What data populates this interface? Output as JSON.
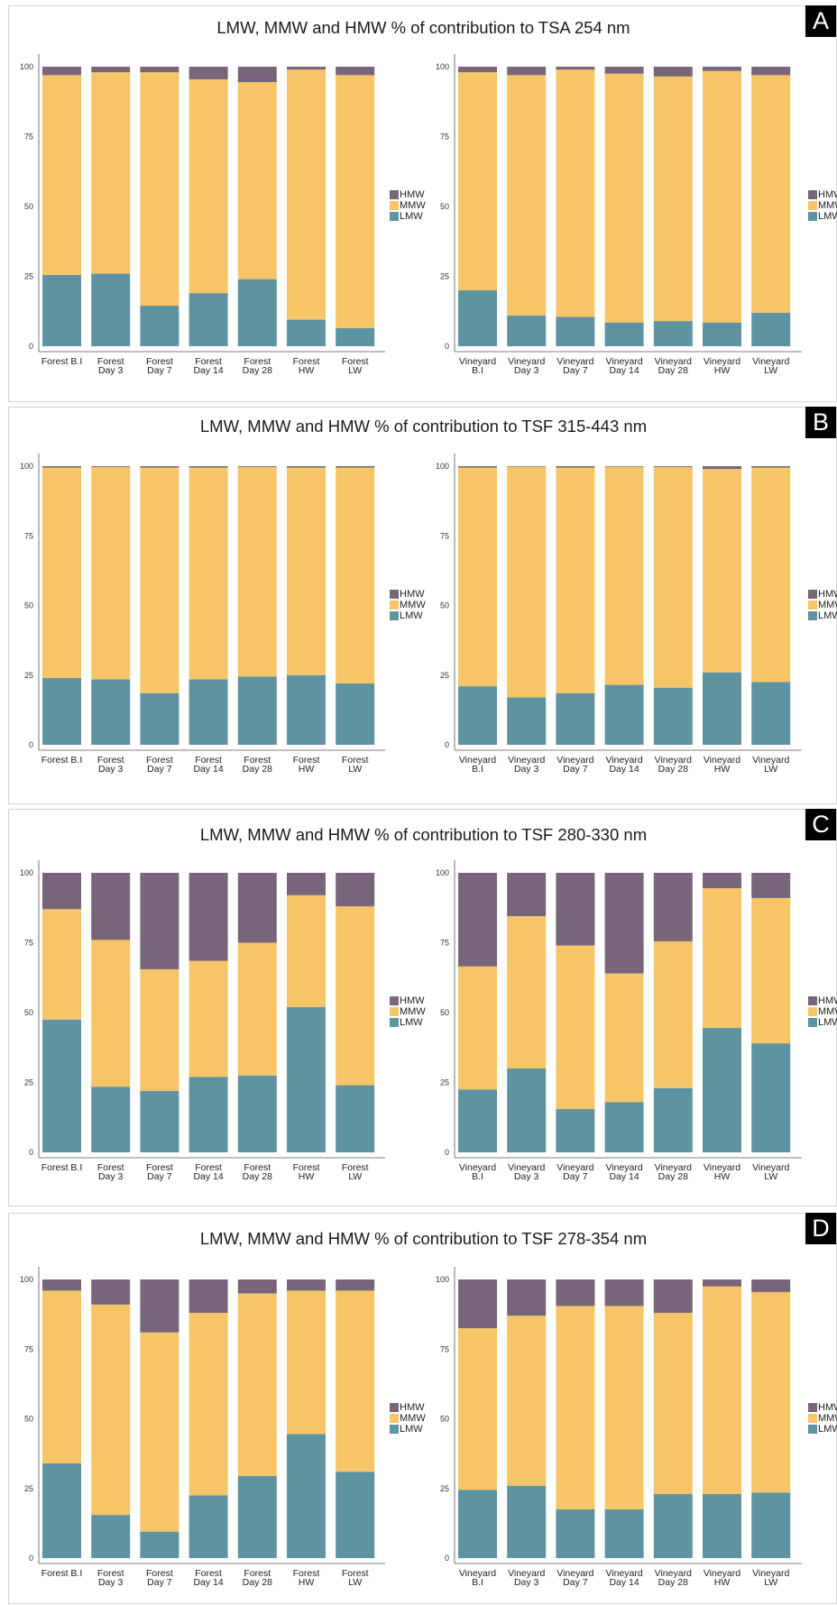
{
  "colors": {
    "LMW": "#5e93a2",
    "MMW": "#f6c567",
    "HMW": "#776679"
  },
  "legend": [
    "HMW",
    "MMW",
    "LMW"
  ],
  "panels": [
    {
      "letter": "A",
      "title": "LMW, MMW and HMW % of contribution to TSA 254 nm"
    },
    {
      "letter": "B",
      "title": "LMW, MMW and HMW % of contribution to TSF 315-443 nm"
    },
    {
      "letter": "C",
      "title": "LMW, MMW and HMW % of contribution to TSF 280-330 nm"
    },
    {
      "letter": "D",
      "title": "LMW, MMW and HMW % of contribution to TSF 278-354 nm"
    }
  ],
  "chart_data": [
    {
      "panel": "A",
      "type": "bar",
      "stacked": true,
      "ylim": [
        0,
        100
      ],
      "yticks": [
        0,
        25,
        50,
        75,
        100
      ],
      "categories": [
        [
          "Forest B.I"
        ],
        [
          "Forest",
          "Day 3"
        ],
        [
          "Forest",
          "Day 7"
        ],
        [
          "Forest",
          "Day 14"
        ],
        [
          "Forest",
          "Day 28"
        ],
        [
          "Forest",
          "HW"
        ],
        [
          "Forest",
          "LW"
        ]
      ],
      "series": [
        {
          "name": "LMW",
          "values": [
            25.5,
            26,
            14.5,
            19,
            24,
            9.5,
            6.5
          ]
        },
        {
          "name": "MMW",
          "values": [
            71.5,
            72,
            83.5,
            76.5,
            70.5,
            89.5,
            90.5
          ]
        },
        {
          "name": "HMW",
          "values": [
            3,
            2,
            2,
            4.5,
            5.5,
            1,
            3
          ]
        }
      ]
    },
    {
      "panel": "A",
      "type": "bar",
      "stacked": true,
      "ylim": [
        0,
        100
      ],
      "yticks": [
        0,
        25,
        50,
        75,
        100
      ],
      "categories": [
        [
          "Vineyard",
          "B.I"
        ],
        [
          "Vineyard",
          "Day 3"
        ],
        [
          "Vineyard",
          "Day 7"
        ],
        [
          "Vineyard",
          "Day 14"
        ],
        [
          "Vineyard",
          "Day 28"
        ],
        [
          "Vineyard",
          "HW"
        ],
        [
          "Vineyard",
          "LW"
        ]
      ],
      "series": [
        {
          "name": "LMW",
          "values": [
            20,
            11,
            10.5,
            8.5,
            9,
            8.5,
            12
          ]
        },
        {
          "name": "MMW",
          "values": [
            78,
            86,
            88.5,
            89,
            87.5,
            90,
            85
          ]
        },
        {
          "name": "HMW",
          "values": [
            2,
            3,
            1,
            2.5,
            3.5,
            1.5,
            3
          ]
        }
      ]
    },
    {
      "panel": "B",
      "type": "bar",
      "stacked": true,
      "ylim": [
        0,
        100
      ],
      "yticks": [
        0,
        25,
        50,
        75,
        100
      ],
      "categories": [
        [
          "Forest B.I"
        ],
        [
          "Forest",
          "Day 3"
        ],
        [
          "Forest",
          "Day 7"
        ],
        [
          "Forest",
          "Day 14"
        ],
        [
          "Forest",
          "Day 28"
        ],
        [
          "Forest",
          "HW"
        ],
        [
          "Forest",
          "LW"
        ]
      ],
      "series": [
        {
          "name": "LMW",
          "values": [
            24,
            23.5,
            18.5,
            23.5,
            24.5,
            25,
            22
          ]
        },
        {
          "name": "MMW",
          "values": [
            75.5,
            76.2,
            81,
            76,
            75.2,
            74.5,
            77.5
          ]
        },
        {
          "name": "HMW",
          "values": [
            0.5,
            0.3,
            0.5,
            0.5,
            0.3,
            0.5,
            0.5
          ]
        }
      ]
    },
    {
      "panel": "B",
      "type": "bar",
      "stacked": true,
      "ylim": [
        0,
        100
      ],
      "yticks": [
        0,
        25,
        50,
        75,
        100
      ],
      "categories": [
        [
          "Vineyard",
          "B.I"
        ],
        [
          "Vineyard",
          "Day 3"
        ],
        [
          "Vineyard",
          "Day 7"
        ],
        [
          "Vineyard",
          "Day 14"
        ],
        [
          "Vineyard",
          "Day 28"
        ],
        [
          "Vineyard",
          "HW"
        ],
        [
          "Vineyard",
          "LW"
        ]
      ],
      "series": [
        {
          "name": "LMW",
          "values": [
            21,
            17,
            18.5,
            21.5,
            20.5,
            26,
            22.5
          ]
        },
        {
          "name": "MMW",
          "values": [
            78.5,
            82.8,
            81,
            78.3,
            79.2,
            73,
            77
          ]
        },
        {
          "name": "HMW",
          "values": [
            0.5,
            0.2,
            0.5,
            0.2,
            0.3,
            1,
            0.5
          ]
        }
      ]
    },
    {
      "panel": "C",
      "type": "bar",
      "stacked": true,
      "ylim": [
        0,
        100
      ],
      "yticks": [
        0,
        25,
        50,
        75,
        100
      ],
      "categories": [
        [
          "Forest B.I"
        ],
        [
          "Forest",
          "Day 3"
        ],
        [
          "Forest",
          "Day 7"
        ],
        [
          "Forest",
          "Day 14"
        ],
        [
          "Forest",
          "Day 28"
        ],
        [
          "Forest",
          "HW"
        ],
        [
          "Forest",
          "LW"
        ]
      ],
      "series": [
        {
          "name": "LMW",
          "values": [
            47.5,
            23.5,
            22,
            27,
            27.5,
            52,
            24
          ]
        },
        {
          "name": "MMW",
          "values": [
            39.5,
            52.5,
            43.5,
            41.5,
            47.5,
            40,
            64
          ]
        },
        {
          "name": "HMW",
          "values": [
            13,
            24,
            34.5,
            31.5,
            25,
            8,
            12
          ]
        }
      ]
    },
    {
      "panel": "C",
      "type": "bar",
      "stacked": true,
      "ylim": [
        0,
        100
      ],
      "yticks": [
        0,
        25,
        50,
        75,
        100
      ],
      "categories": [
        [
          "Vineyard",
          "B.I"
        ],
        [
          "Vineyard",
          "Day 3"
        ],
        [
          "Vineyard",
          "Day 7"
        ],
        [
          "Vineyard",
          "Day 14"
        ],
        [
          "Vineyard",
          "Day 28"
        ],
        [
          "Vineyard",
          "HW"
        ],
        [
          "Vineyard",
          "LW"
        ]
      ],
      "series": [
        {
          "name": "LMW",
          "values": [
            22.5,
            30,
            15.5,
            18,
            23,
            44.5,
            39
          ]
        },
        {
          "name": "MMW",
          "values": [
            44,
            54.5,
            58.5,
            46,
            52.5,
            50,
            52
          ]
        },
        {
          "name": "HMW",
          "values": [
            33.5,
            15.5,
            26,
            36,
            24.5,
            5.5,
            9
          ]
        }
      ]
    },
    {
      "panel": "D",
      "type": "bar",
      "stacked": true,
      "ylim": [
        0,
        100
      ],
      "yticks": [
        0,
        25,
        50,
        75,
        100
      ],
      "categories": [
        [
          "Forest B.I"
        ],
        [
          "Forest",
          "Day 3"
        ],
        [
          "Forest",
          "Day 7"
        ],
        [
          "Forest",
          "Day 14"
        ],
        [
          "Forest",
          "Day 28"
        ],
        [
          "Forest",
          "HW"
        ],
        [
          "Forest",
          "LW"
        ]
      ],
      "series": [
        {
          "name": "LMW",
          "values": [
            34,
            15.5,
            9.5,
            22.5,
            29.5,
            44.5,
            31
          ]
        },
        {
          "name": "MMW",
          "values": [
            62,
            75.5,
            71.5,
            65.5,
            65.5,
            51.5,
            65
          ]
        },
        {
          "name": "HMW",
          "values": [
            4,
            9,
            19,
            12,
            5,
            4,
            4
          ]
        }
      ]
    },
    {
      "panel": "D",
      "type": "bar",
      "stacked": true,
      "ylim": [
        0,
        100
      ],
      "yticks": [
        0,
        25,
        50,
        75,
        100
      ],
      "categories": [
        [
          "Vineyard",
          "B.I"
        ],
        [
          "Vineyard",
          "Day 3"
        ],
        [
          "Vineyard",
          "Day 7"
        ],
        [
          "Vineyard",
          "Day 14"
        ],
        [
          "Vineyard",
          "Day 28"
        ],
        [
          "Vineyard",
          "HW"
        ],
        [
          "Vineyard",
          "LW"
        ]
      ],
      "series": [
        {
          "name": "LMW",
          "values": [
            24.5,
            26,
            17.5,
            17.5,
            23,
            23,
            23.5
          ]
        },
        {
          "name": "MMW",
          "values": [
            58,
            61,
            73,
            73,
            65,
            74.5,
            72
          ]
        },
        {
          "name": "HMW",
          "values": [
            17.5,
            13,
            9.5,
            9.5,
            12,
            2.5,
            4.5
          ]
        }
      ]
    }
  ]
}
